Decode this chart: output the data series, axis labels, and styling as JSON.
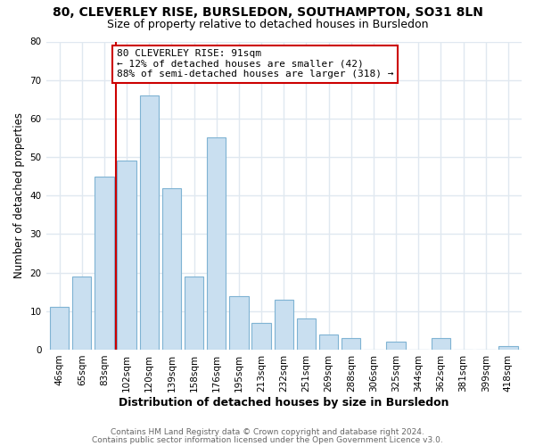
{
  "title1": "80, CLEVERLEY RISE, BURSLEDON, SOUTHAMPTON, SO31 8LN",
  "title2": "Size of property relative to detached houses in Bursledon",
  "xlabel": "Distribution of detached houses by size in Bursledon",
  "ylabel": "Number of detached properties",
  "bar_labels": [
    "46sqm",
    "65sqm",
    "83sqm",
    "102sqm",
    "120sqm",
    "139sqm",
    "158sqm",
    "176sqm",
    "195sqm",
    "213sqm",
    "232sqm",
    "251sqm",
    "269sqm",
    "288sqm",
    "306sqm",
    "325sqm",
    "344sqm",
    "362sqm",
    "381sqm",
    "399sqm",
    "418sqm"
  ],
  "bar_heights": [
    11,
    19,
    45,
    49,
    66,
    42,
    19,
    55,
    14,
    7,
    13,
    8,
    4,
    3,
    0,
    2,
    0,
    3,
    0,
    0,
    1
  ],
  "bar_color": "#c9dff0",
  "bar_edge_color": "#7fb3d3",
  "red_line_x": 2.5,
  "property_size": "91sqm",
  "pct_smaller": "12%",
  "n_smaller": 42,
  "pct_larger": "88%",
  "n_larger": 318,
  "annotation_box_facecolor": "#ffffff",
  "annotation_box_edgecolor": "#cc0000",
  "footnote1": "Contains HM Land Registry data © Crown copyright and database right 2024.",
  "footnote2": "Contains public sector information licensed under the Open Government Licence v3.0.",
  "ylim": [
    0,
    80
  ],
  "yticks": [
    0,
    10,
    20,
    30,
    40,
    50,
    60,
    70,
    80
  ],
  "background_color": "#ffffff",
  "grid_color": "#e0e8f0",
  "title_fontsize": 10,
  "subtitle_fontsize": 9
}
